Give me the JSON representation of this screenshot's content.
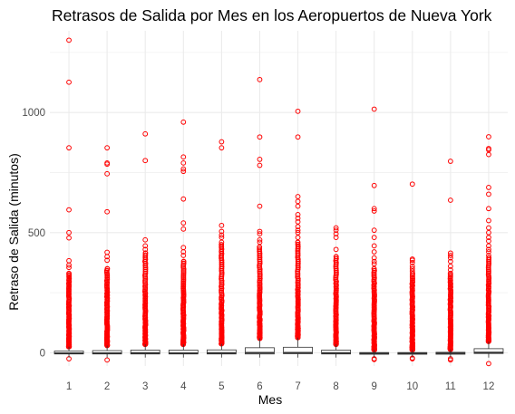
{
  "chart_data": {
    "type": "boxplot",
    "title": "Retrasos de Salida por Mes en los Aeropuertos de Nueva York",
    "xlabel": "Mes",
    "ylabel": "Retraso de Salida (minutos)",
    "categories": [
      "1",
      "2",
      "3",
      "4",
      "5",
      "6",
      "7",
      "8",
      "9",
      "10",
      "11",
      "12"
    ],
    "y_ticks": [
      0,
      500,
      1000
    ],
    "ylim": [
      -55,
      1340
    ],
    "grid": true,
    "colors": {
      "outlier": "#ff0000",
      "box": "#333333",
      "grid": "#ebebeb"
    },
    "boxes": [
      {
        "month": "1",
        "q1": -5,
        "median": -2,
        "q3": 7,
        "whisker_low": -20,
        "whisker_high": 25
      },
      {
        "month": "2",
        "q1": -5,
        "median": -2,
        "q3": 9,
        "whisker_low": -20,
        "whisker_high": 30
      },
      {
        "month": "3",
        "q1": -5,
        "median": -1,
        "q3": 11,
        "whisker_low": -20,
        "whisker_high": 35
      },
      {
        "month": "4",
        "q1": -5,
        "median": -2,
        "q3": 11,
        "whisker_low": -20,
        "whisker_high": 35
      },
      {
        "month": "5",
        "q1": -5,
        "median": -1,
        "q3": 12,
        "whisker_low": -20,
        "whisker_high": 37
      },
      {
        "month": "6",
        "q1": -5,
        "median": 0,
        "q3": 21,
        "whisker_low": -20,
        "whisker_high": 60
      },
      {
        "month": "7",
        "q1": -4,
        "median": 0,
        "q3": 23,
        "whisker_low": -20,
        "whisker_high": 63
      },
      {
        "month": "8",
        "q1": -5,
        "median": -1,
        "q3": 11,
        "whisker_low": -20,
        "whisker_high": 35
      },
      {
        "month": "9",
        "q1": -6,
        "median": -3,
        "q3": 1,
        "whisker_low": -20,
        "whisker_high": 12
      },
      {
        "month": "10",
        "q1": -6,
        "median": -3,
        "q3": 1,
        "whisker_low": -20,
        "whisker_high": 12
      },
      {
        "month": "11",
        "q1": -6,
        "median": -2,
        "q3": 2,
        "whisker_low": -20,
        "whisker_high": 14
      },
      {
        "month": "12",
        "q1": -3,
        "median": 1,
        "q3": 17,
        "whisker_low": -20,
        "whisker_high": 47
      }
    ],
    "outliers": [
      {
        "month": "1",
        "max_dense": 330,
        "values": [
          1301,
          1126,
          853,
          595,
          500,
          478,
          383,
          365,
          355,
          -25
        ]
      },
      {
        "month": "2",
        "max_dense": 350,
        "values": [
          853,
          790,
          785,
          745,
          587,
          418,
          400,
          385,
          -30
        ]
      },
      {
        "month": "3",
        "max_dense": 415,
        "values": [
          911,
          800,
          470,
          445,
          430
        ]
      },
      {
        "month": "4",
        "max_dense": 380,
        "values": [
          960,
          815,
          790,
          765,
          755,
          640,
          540,
          515,
          438,
          420,
          405
        ]
      },
      {
        "month": "5",
        "max_dense": 450,
        "values": [
          878,
          853,
          530,
          505,
          490,
          480,
          460
        ]
      },
      {
        "month": "6",
        "max_dense": 440,
        "values": [
          1137,
          898,
          805,
          780,
          610,
          505,
          495,
          470,
          460
        ]
      },
      {
        "month": "7",
        "max_dense": 460,
        "values": [
          1005,
          898,
          650,
          630,
          610,
          575,
          560,
          545,
          525,
          510,
          500,
          480
        ]
      },
      {
        "month": "8",
        "max_dense": 400,
        "values": [
          520,
          510,
          495,
          480,
          430
        ]
      },
      {
        "month": "9",
        "max_dense": 350,
        "values": [
          1014,
          696,
          600,
          590,
          510,
          480,
          445,
          420,
          395,
          380,
          370,
          -25,
          -28
        ]
      },
      {
        "month": "10",
        "max_dense": 330,
        "values": [
          702,
          390,
          385,
          375,
          360,
          350,
          340,
          -22,
          -25
        ]
      },
      {
        "month": "11",
        "max_dense": 330,
        "values": [
          797,
          635,
          415,
          405,
          395,
          380,
          360,
          345,
          -25,
          -30
        ]
      },
      {
        "month": "12",
        "max_dense": 395,
        "values": [
          899,
          850,
          845,
          825,
          688,
          660,
          600,
          550,
          520,
          500,
          480,
          465,
          445,
          430,
          420,
          405,
          -45
        ]
      }
    ]
  }
}
